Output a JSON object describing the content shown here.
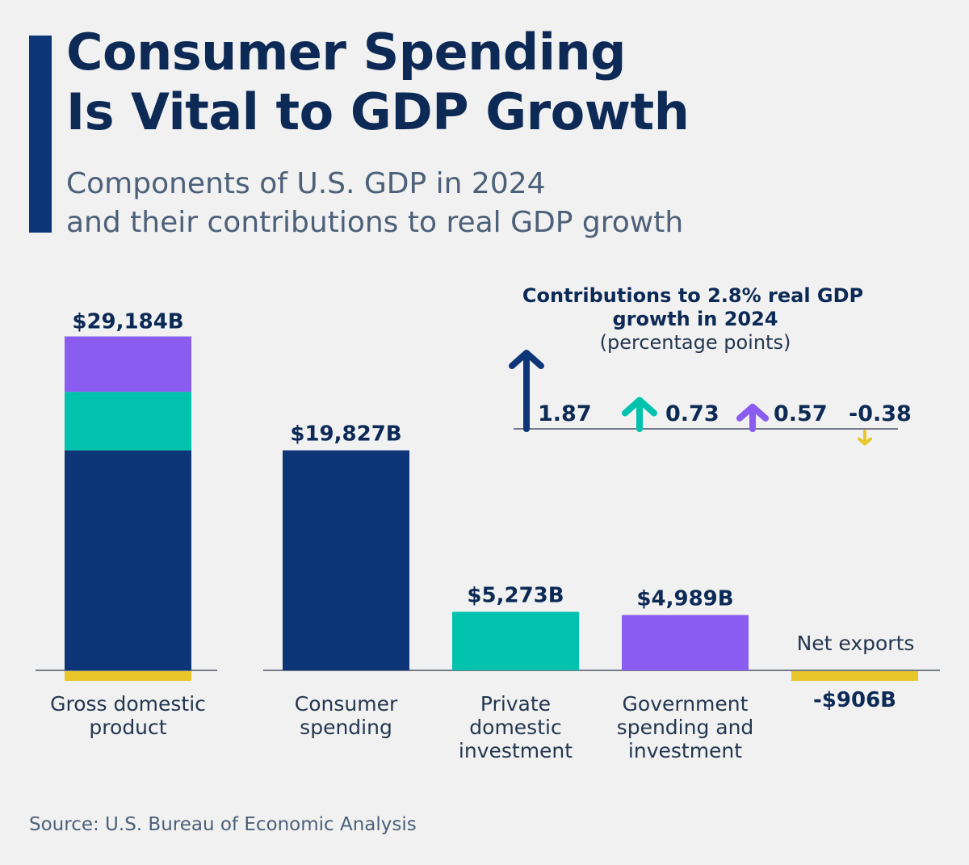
{
  "header": {
    "title_line1": "Consumer Spending",
    "title_line2": "Is Vital to GDP Growth",
    "subtitle_line1": "Components of U.S. GDP in 2024",
    "subtitle_line2": "and their contributions to real GDP growth"
  },
  "source": "Source: U.S. Bureau of Economic Analysis",
  "colors": {
    "consumer": "#0c3678",
    "investment": "#00c2ad",
    "government": "#8b5cf0",
    "net_exports": "#e9c62a",
    "axis": "#4c5666",
    "text": "#0c2a55"
  },
  "chart_data": [
    {
      "type": "bar",
      "unit": "$B",
      "categories": [
        {
          "label_lines": [
            "Gross domestic",
            "product"
          ],
          "value": 29184,
          "value_label": "$29,184B",
          "stack": [
            {
              "component": "consumer",
              "value": 19827
            },
            {
              "component": "investment",
              "value": 5273
            },
            {
              "component": "government",
              "value": 4989
            },
            {
              "component": "net_exports",
              "value": -906
            }
          ]
        },
        {
          "label_lines": [
            "Consumer",
            "spending"
          ],
          "value": 19827,
          "value_label": "$19,827B",
          "component": "consumer"
        },
        {
          "label_lines": [
            "Private",
            "domestic",
            "investment"
          ],
          "value": 5273,
          "value_label": "$5,273B",
          "component": "investment"
        },
        {
          "label_lines": [
            "Government",
            "spending and",
            "investment"
          ],
          "value": 4989,
          "value_label": "$4,989B",
          "component": "government"
        },
        {
          "label_lines": [
            "Net exports"
          ],
          "value": -906,
          "value_label": "-$906B",
          "component": "net_exports"
        }
      ]
    },
    {
      "type": "bar",
      "title_line1": "Contributions to 2.8% real GDP",
      "title_line2": "growth in 2024",
      "subtitle": "(percentage points)",
      "values": [
        {
          "component": "consumer",
          "value": 1.87,
          "label": "1.87"
        },
        {
          "component": "investment",
          "value": 0.73,
          "label": "0.73"
        },
        {
          "component": "government",
          "value": 0.57,
          "label": "0.57"
        },
        {
          "component": "net_exports",
          "value": -0.38,
          "label": "-0.38"
        }
      ]
    }
  ]
}
